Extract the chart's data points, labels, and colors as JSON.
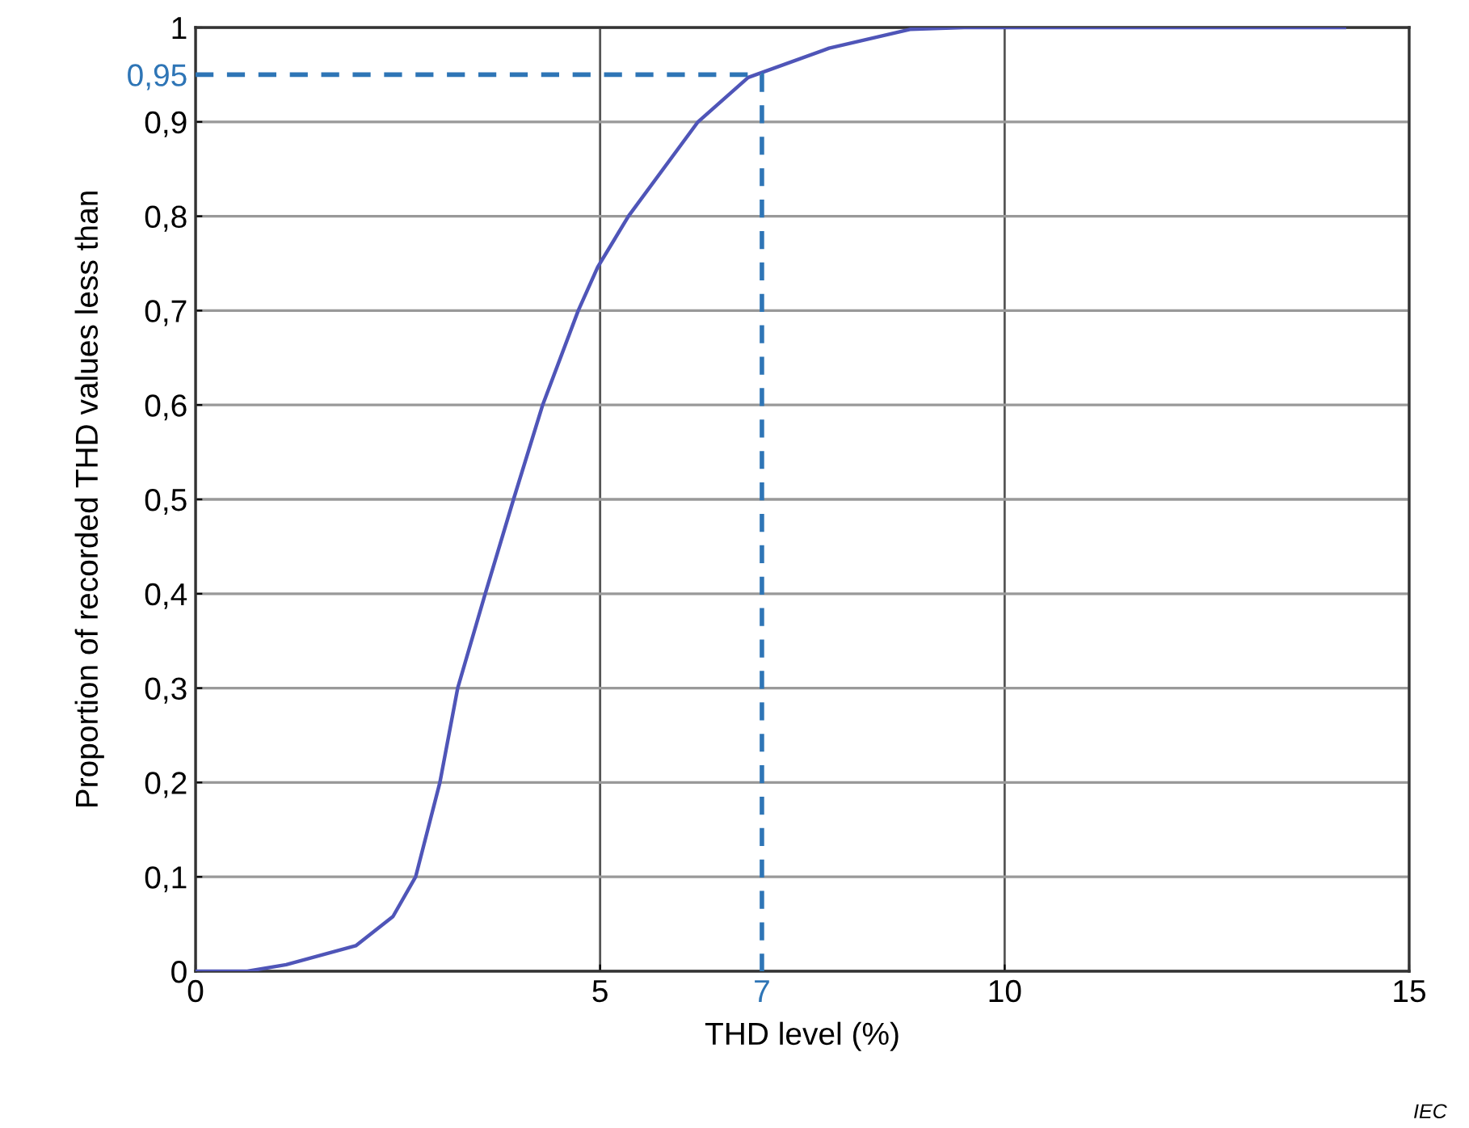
{
  "chart_data": {
    "type": "line",
    "xlabel": "THD level (%)",
    "ylabel": "Proportion of recorded THD values less than",
    "series": [
      {
        "color": "#4f55b8",
        "x": [
          0,
          0.64,
          1.12,
          1.98,
          2.44,
          2.72,
          3.02,
          3.24,
          3.58,
          3.93,
          4.29,
          4.73,
          4.97,
          5.35,
          6.21,
          6.83,
          7.83,
          8.83,
          9.5,
          14.2
        ],
        "values": [
          0,
          0,
          0.007,
          0.027,
          0.058,
          0.1,
          0.2,
          0.3,
          0.4,
          0.5,
          0.6,
          0.7,
          0.746,
          0.8,
          0.9,
          0.947,
          0.978,
          0.998,
          1,
          1
        ]
      },
      {
        "color": "#2e75b6",
        "line_style": "dashed",
        "x": [
          0,
          7,
          7
        ],
        "values": [
          0.95,
          0.95,
          0
        ]
      }
    ],
    "xlim": [
      0,
      15
    ],
    "ylim": [
      0,
      1
    ],
    "xticks": [
      0,
      5,
      7,
      10,
      15
    ],
    "yticks": [
      {
        "value": 0,
        "label": "0"
      },
      {
        "value": 0.1,
        "label": "0,1"
      },
      {
        "value": 0.2,
        "label": "0,2"
      },
      {
        "value": 0.3,
        "label": "0,3"
      },
      {
        "value": 0.4,
        "label": "0,4"
      },
      {
        "value": 0.5,
        "label": "0,5"
      },
      {
        "value": 0.6,
        "label": "0,6"
      },
      {
        "value": 0.7,
        "label": "0,7"
      },
      {
        "value": 0.8,
        "label": "0,8"
      },
      {
        "value": 0.9,
        "label": "0,9"
      },
      {
        "value": 0.95,
        "label": "0,95"
      },
      {
        "value": 1,
        "label": "1"
      }
    ],
    "grid": true,
    "annotations": [
      "IEC"
    ]
  }
}
